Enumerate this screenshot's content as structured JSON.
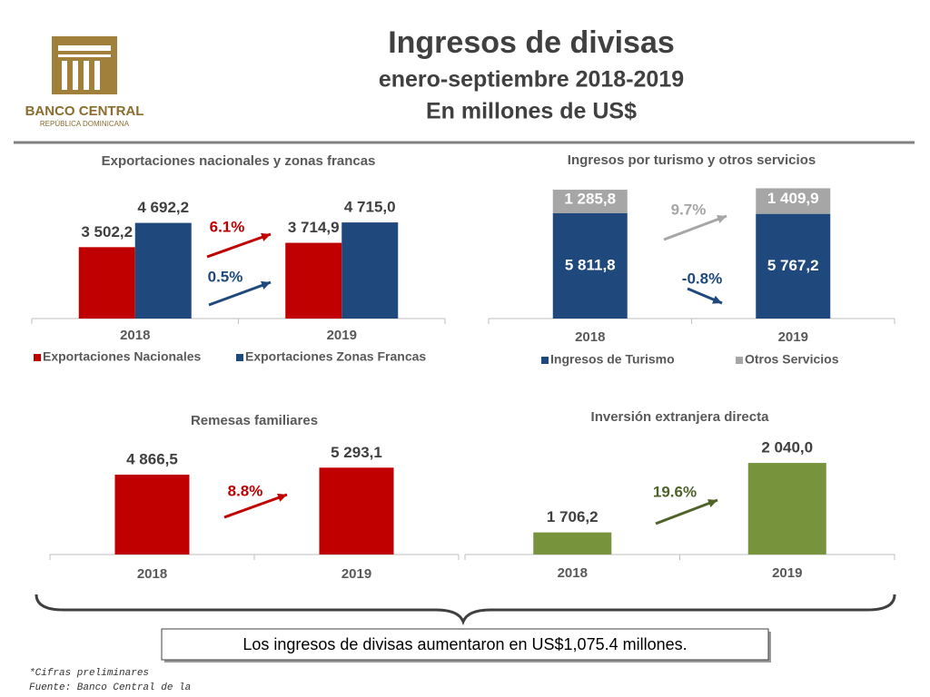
{
  "logo": {
    "name": "BANCO CENTRAL",
    "subtitle": "REPÚBLICA DOMINICANA"
  },
  "title": [
    "Ingresos de divisas",
    "enero-septiembre 2018-2019",
    "En millones de US$"
  ],
  "chart_data": [
    {
      "type": "bar",
      "title": "Exportaciones nacionales y zonas francas",
      "categories": [
        "2018",
        "2019"
      ],
      "series": [
        {
          "name": "Exportaciones Nacionales",
          "color": "#c00000",
          "values": [
            3502.2,
            3714.9
          ],
          "value_labels": [
            "3 502,2",
            "3 714,9"
          ]
        },
        {
          "name": "Exportaciones Zonas Francas",
          "color": "#1f497d",
          "values": [
            4692.2,
            4715.0
          ],
          "value_labels": [
            "4 692,2",
            "4 715,0"
          ]
        }
      ],
      "ylim": [
        0,
        6500
      ],
      "annotations": [
        {
          "text": "6.1%",
          "color": "#c00000"
        },
        {
          "text": "0.5%",
          "color": "#1f497d"
        }
      ]
    },
    {
      "type": "stacked_bar",
      "title": "Ingresos por turismo y otros servicios",
      "categories": [
        "2018",
        "2019"
      ],
      "series": [
        {
          "name": "Ingresos de Turismo",
          "color": "#1f497d",
          "values": [
            5811.8,
            5767.2
          ],
          "value_labels": [
            "5 811,8",
            "5 767,2"
          ]
        },
        {
          "name": "Otros Servicios",
          "color": "#a6a6a6",
          "values": [
            1285.8,
            1409.9
          ],
          "value_labels": [
            "1 285,8",
            "1 409,9"
          ]
        }
      ],
      "ylim": [
        0,
        7800
      ],
      "annotations": [
        {
          "text": "9.7%",
          "color": "#a6a6a6"
        },
        {
          "text": "-0.8%",
          "color": "#1f497d"
        }
      ]
    },
    {
      "type": "bar",
      "title": "Remesas familiares",
      "categories": [
        "2018",
        "2019"
      ],
      "values": [
        4866.5,
        5293.1
      ],
      "value_labels": [
        "4 866,5",
        "5 293,1"
      ],
      "color": "#c00000",
      "ylim": [
        0,
        7800
      ],
      "annotations": [
        {
          "text": "8.8%",
          "color": "#c00000"
        }
      ]
    },
    {
      "type": "bar",
      "title": "Inversión extranjera directa",
      "categories": [
        "2018",
        "2019"
      ],
      "values": [
        1706.2,
        2040.0
      ],
      "value_labels": [
        "1 706,2",
        "2 040,0"
      ],
      "color": "#77933c",
      "ylim": [
        1600,
        2180
      ],
      "annotations": [
        {
          "text": "19.6%",
          "color": "#4f6228"
        }
      ]
    }
  ],
  "summary": "Los ingresos de divisas aumentaron en US$1,075.4 millones.",
  "notes": [
    "*Cifras preliminares",
    "Fuente: Banco Central de la"
  ]
}
